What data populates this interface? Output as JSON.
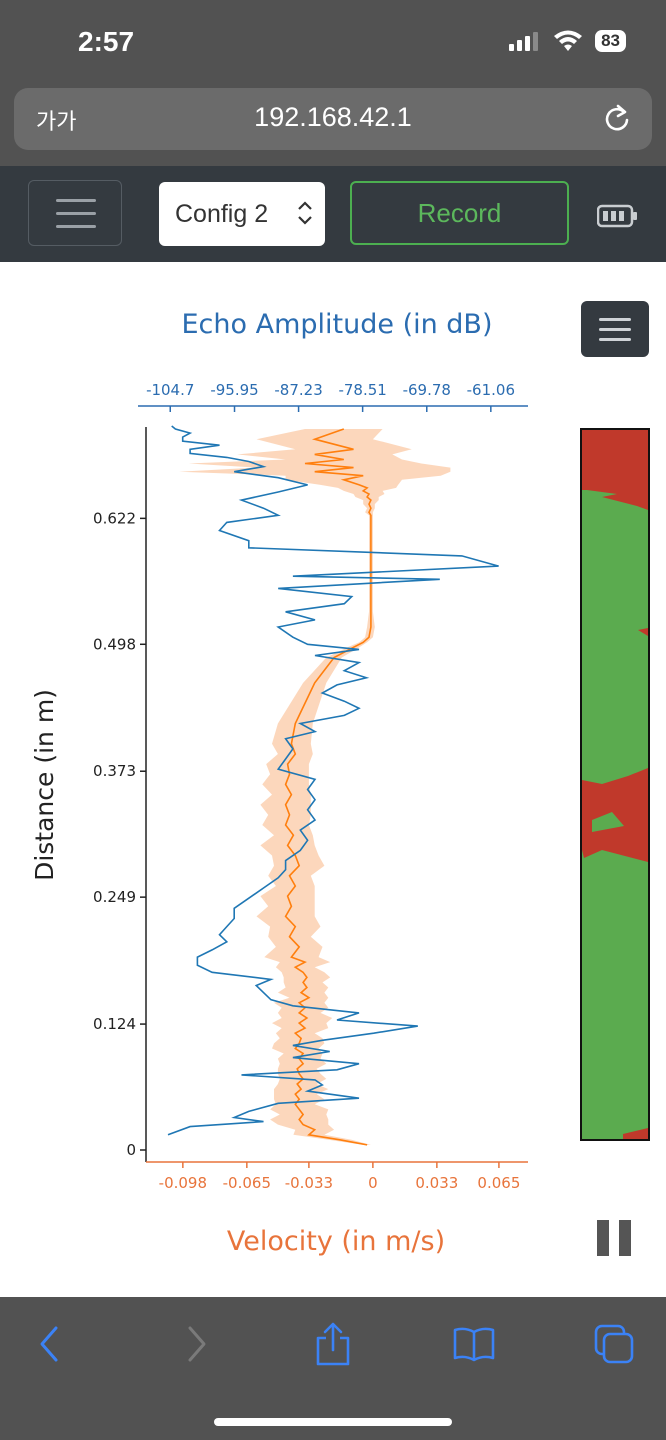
{
  "status": {
    "time": "2:57",
    "battery": "83"
  },
  "browser": {
    "text_size": "가가",
    "url": "192.168.42.1"
  },
  "navbar": {
    "config_value": "Config 2",
    "record_label": "Record"
  },
  "chart_data": {
    "type": "line",
    "title": "Echo Amplitude (in dB)",
    "ylabel": "Distance (in m)",
    "xlabel": "Velocity (in m/s)",
    "top_ticks": [
      "-104.7",
      "-95.95",
      "-87.23",
      "-78.51",
      "-69.78",
      "-61.06"
    ],
    "bottom_ticks": [
      "-0.098",
      "-0.065",
      "-0.033",
      "0",
      "0.033",
      "0.065"
    ],
    "y_ticks": [
      "0",
      "0.124",
      "0.249",
      "0.373",
      "0.498",
      "0.622"
    ],
    "ylim": [
      0,
      0.71
    ],
    "top_xlim": [
      -108,
      -56
    ],
    "bottom_xlim": [
      -0.117,
      0.08
    ],
    "series": [
      {
        "name": "",
        "color": "#1f77b4",
        "axis": "top",
        "x": [
          -105,
          -102,
          -92,
          -96,
          -94,
          -90,
          -79,
          -86,
          -84,
          -85,
          -95,
          -82,
          -79,
          -88,
          -83,
          -88,
          -84,
          -77,
          -71,
          -82,
          -79,
          -88,
          -91,
          -92,
          -93,
          -91,
          -99,
          -101,
          -101,
          -99,
          -97,
          -98,
          -97,
          -96,
          -96,
          -94,
          -92,
          -90,
          -89,
          -89,
          -87,
          -86,
          -87,
          -85,
          -86,
          -85,
          -86,
          -85,
          -90,
          -89,
          -88,
          -89,
          -85,
          -87,
          -81,
          -79,
          -81,
          -84,
          -82,
          -78,
          -81,
          -79,
          -85,
          -79,
          -86,
          -88,
          -90,
          -85,
          -89,
          -81,
          -80,
          -90,
          -68,
          -88,
          -60,
          -65,
          -94,
          -94,
          -98,
          -97,
          -90,
          -92,
          -95,
          -90,
          -86,
          -90,
          -96,
          -92,
          -94,
          -97,
          -102,
          -102,
          -98,
          -103,
          -103,
          -102,
          -104,
          -104.5
        ],
        "y": [
          0.015,
          0.023,
          0.028,
          0.032,
          0.038,
          0.046,
          0.051,
          0.058,
          0.064,
          0.069,
          0.074,
          0.079,
          0.085,
          0.091,
          0.097,
          0.103,
          0.108,
          0.115,
          0.122,
          0.128,
          0.135,
          0.142,
          0.148,
          0.155,
          0.162,
          0.168,
          0.175,
          0.182,
          0.19,
          0.197,
          0.205,
          0.212,
          0.22,
          0.228,
          0.238,
          0.248,
          0.258,
          0.268,
          0.276,
          0.285,
          0.295,
          0.305,
          0.315,
          0.325,
          0.335,
          0.345,
          0.355,
          0.365,
          0.375,
          0.385,
          0.395,
          0.405,
          0.412,
          0.42,
          0.428,
          0.435,
          0.442,
          0.45,
          0.458,
          0.465,
          0.472,
          0.48,
          0.487,
          0.493,
          0.498,
          0.505,
          0.515,
          0.522,
          0.53,
          0.538,
          0.545,
          0.553,
          0.562,
          0.565,
          0.575,
          0.585,
          0.593,
          0.6,
          0.61,
          0.618,
          0.625,
          0.632,
          0.64,
          0.648,
          0.655,
          0.662,
          0.668,
          0.673,
          0.678,
          0.682,
          0.686,
          0.69,
          0.694,
          0.698,
          0.702,
          0.706,
          0.71,
          0.713
        ]
      },
      {
        "name": "",
        "color": "#ff7f0e",
        "axis": "bottom",
        "x": [
          -0.003,
          -0.017,
          -0.033,
          -0.03,
          -0.036,
          -0.038,
          -0.036,
          -0.038,
          -0.04,
          -0.038,
          -0.04,
          -0.037,
          -0.039,
          -0.036,
          -0.038,
          -0.039,
          -0.036,
          -0.038,
          -0.036,
          -0.04,
          -0.038,
          -0.037,
          -0.04,
          -0.035,
          -0.038,
          -0.034,
          -0.038,
          -0.035,
          -0.038,
          -0.033,
          -0.037,
          -0.034,
          -0.036,
          -0.034,
          -0.036,
          -0.04,
          -0.035,
          -0.042,
          -0.038,
          -0.043,
          -0.04,
          -0.045,
          -0.042,
          -0.044,
          -0.04,
          -0.043,
          -0.038,
          -0.04,
          -0.044,
          -0.041,
          -0.045,
          -0.043,
          -0.045,
          -0.042,
          -0.045,
          -0.043,
          -0.044,
          -0.04,
          -0.042,
          -0.04,
          -0.03,
          -0.02,
          -0.01,
          -0.005,
          -0.002,
          -0.001,
          -0.001,
          -0.001,
          -0.001,
          -0.001,
          -0.001,
          -0.001,
          -0.001,
          -0.001,
          -0.001,
          -0.002,
          -0.001,
          -0.002,
          -0.001,
          -0.003,
          -0.002,
          -0.005,
          -0.003,
          -0.007,
          -0.015,
          -0.005,
          -0.03,
          -0.01,
          -0.035,
          -0.015,
          -0.03,
          -0.01,
          -0.03,
          -0.015
        ],
        "y": [
          0.005,
          0.01,
          0.015,
          0.02,
          0.025,
          0.03,
          0.035,
          0.04,
          0.045,
          0.05,
          0.055,
          0.06,
          0.065,
          0.07,
          0.075,
          0.08,
          0.085,
          0.09,
          0.095,
          0.1,
          0.105,
          0.11,
          0.115,
          0.12,
          0.125,
          0.13,
          0.135,
          0.14,
          0.145,
          0.15,
          0.155,
          0.16,
          0.165,
          0.17,
          0.175,
          0.18,
          0.185,
          0.19,
          0.2,
          0.21,
          0.22,
          0.23,
          0.24,
          0.25,
          0.26,
          0.27,
          0.28,
          0.29,
          0.3,
          0.31,
          0.32,
          0.33,
          0.34,
          0.35,
          0.36,
          0.37,
          0.38,
          0.39,
          0.4,
          0.42,
          0.46,
          0.485,
          0.495,
          0.5,
          0.505,
          0.515,
          0.53,
          0.545,
          0.56,
          0.575,
          0.59,
          0.605,
          0.615,
          0.62,
          0.625,
          0.628,
          0.632,
          0.636,
          0.64,
          0.643,
          0.646,
          0.649,
          0.652,
          0.655,
          0.66,
          0.664,
          0.668,
          0.672,
          0.676,
          0.68,
          0.685,
          0.69,
          0.7,
          0.71
        ],
        "band_halfwidth": [
          0.002,
          0.006,
          0.008,
          0.01,
          0.013,
          0.015,
          0.012,
          0.015,
          0.01,
          0.013,
          0.011,
          0.014,
          0.01,
          0.012,
          0.011,
          0.01,
          0.012,
          0.011,
          0.01,
          0.012,
          0.013,
          0.011,
          0.01,
          0.012,
          0.014,
          0.013,
          0.011,
          0.012,
          0.013,
          0.01,
          0.012,
          0.011,
          0.01,
          0.012,
          0.011,
          0.01,
          0.013,
          0.014,
          0.012,
          0.011,
          0.013,
          0.015,
          0.012,
          0.014,
          0.01,
          0.011,
          0.013,
          0.012,
          0.014,
          0.01,
          0.012,
          0.011,
          0.013,
          0.01,
          0.012,
          0.01,
          0.011,
          0.009,
          0.01,
          0.009,
          0.006,
          0.004,
          0.003,
          0.002,
          0.002,
          0.002,
          0.001,
          0.001,
          0.001,
          0.001,
          0.001,
          0.001,
          0.001,
          0.001,
          0.001,
          0.002,
          0.002,
          0.003,
          0.004,
          0.006,
          0.008,
          0.01,
          0.015,
          0.02,
          0.03,
          0.04,
          0.07,
          0.05,
          0.06,
          0.03,
          0.04,
          0.03,
          0.03,
          0.02
        ]
      }
    ],
    "side_strip": {
      "ylim": [
        0,
        0.71
      ],
      "colors": {
        "ok": "#5bab4f",
        "bad": "#c0392b"
      }
    }
  }
}
